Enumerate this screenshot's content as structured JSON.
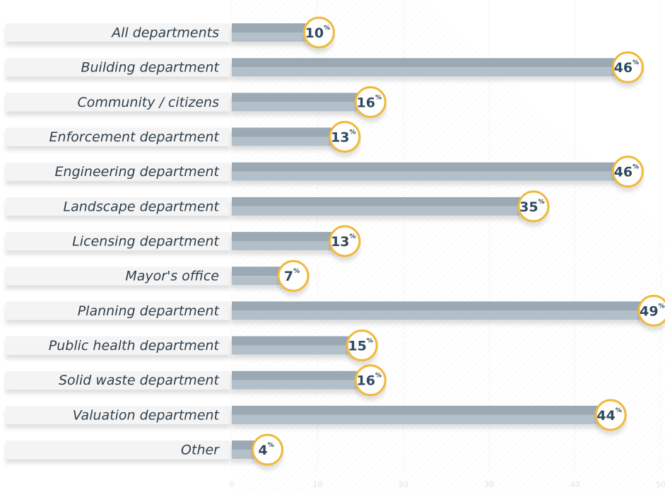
{
  "chart_data": {
    "type": "bar",
    "categories": [
      "All departments",
      "Building department",
      "Community / citizens",
      "Enforcement department",
      "Engineering department",
      "Landscape department",
      "Licensing department",
      "Mayor's office",
      "Planning department",
      "Public health department",
      "Solid waste department",
      "Valuation department",
      "Other"
    ],
    "values": [
      10,
      46,
      16,
      13,
      46,
      35,
      13,
      7,
      49,
      15,
      16,
      44,
      4
    ],
    "unit": "%",
    "color": "#9aa9b4",
    "xlim": [
      0,
      50
    ],
    "xticks": [
      0,
      10,
      20,
      30,
      40,
      50
    ],
    "grid": true
  }
}
